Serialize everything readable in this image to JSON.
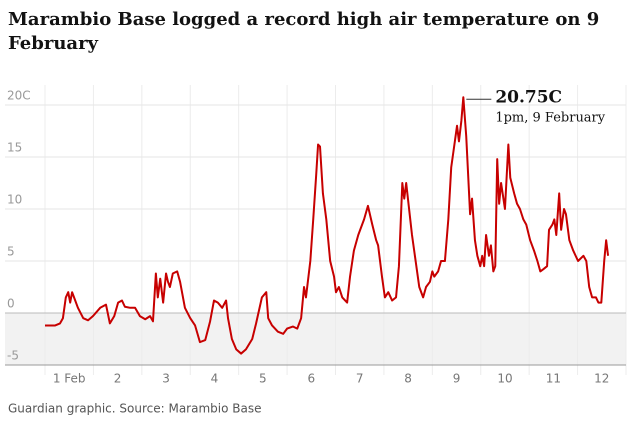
{
  "chart_data": {
    "type": "line",
    "title": "Marambio Base logged a record high air temperature on 9 February",
    "source": "Guardian graphic. Source: Marambio Base",
    "annotation": {
      "label": "20.75C",
      "sublabel": "1pm, 9 February"
    },
    "xlim": [
      1,
      13
    ],
    "xgrid": [
      1,
      2,
      3,
      4,
      5,
      6,
      7,
      8,
      9,
      10,
      11,
      12,
      13
    ],
    "xticks": [
      {
        "value": 1.5,
        "label": "1 Feb"
      },
      {
        "value": 2.5,
        "label": "2"
      },
      {
        "value": 3.5,
        "label": "3"
      },
      {
        "value": 4.5,
        "label": "4"
      },
      {
        "value": 5.5,
        "label": "5"
      },
      {
        "value": 6.5,
        "label": "6"
      },
      {
        "value": 7.5,
        "label": "7"
      },
      {
        "value": 8.5,
        "label": "8"
      },
      {
        "value": 9.5,
        "label": "9"
      },
      {
        "value": 10.5,
        "label": "10"
      },
      {
        "value": 11.5,
        "label": "11"
      },
      {
        "value": 12.5,
        "label": "12"
      }
    ],
    "ylim": [
      -5,
      20
    ],
    "yticks": [
      -5,
      0,
      5,
      10,
      15,
      {
        "value": 20,
        "label": "20C"
      }
    ],
    "grid": true,
    "below_zero_fill": "#f2f2f2",
    "color": "#c70000",
    "x": [
      1.0,
      1.21,
      1.31,
      1.37,
      1.43,
      1.48,
      1.52,
      1.56,
      1.6,
      1.68,
      1.79,
      1.89,
      1.99,
      2.14,
      2.26,
      2.34,
      2.43,
      2.51,
      2.59,
      2.65,
      2.76,
      2.86,
      2.96,
      3.07,
      3.17,
      3.23,
      3.29,
      3.33,
      3.38,
      3.44,
      3.5,
      3.54,
      3.58,
      3.64,
      3.73,
      3.79,
      3.89,
      4.0,
      4.1,
      4.2,
      4.31,
      4.41,
      4.49,
      4.57,
      4.66,
      4.74,
      4.78,
      4.86,
      4.95,
      5.05,
      5.15,
      5.28,
      5.36,
      5.48,
      5.57,
      5.61,
      5.69,
      5.81,
      5.92,
      6.0,
      6.12,
      6.21,
      6.29,
      6.35,
      6.39,
      6.48,
      6.54,
      6.6,
      6.64,
      6.68,
      6.74,
      6.81,
      6.89,
      6.97,
      7.01,
      7.07,
      7.14,
      7.24,
      7.3,
      7.38,
      7.47,
      7.59,
      7.67,
      7.76,
      7.84,
      7.88,
      7.96,
      8.02,
      8.09,
      8.17,
      8.25,
      8.31,
      8.38,
      8.42,
      8.46,
      8.52,
      8.58,
      8.64,
      8.73,
      8.81,
      8.87,
      8.95,
      9.0,
      9.04,
      9.12,
      9.18,
      9.26,
      9.33,
      9.39,
      9.45,
      9.51,
      9.55,
      9.6,
      9.64,
      9.7,
      9.78,
      9.82,
      9.88,
      9.93,
      9.99,
      10.03,
      10.07,
      10.11,
      10.17,
      10.21,
      10.26,
      10.3,
      10.34,
      10.38,
      10.42,
      10.5,
      10.57,
      10.61,
      10.69,
      10.75,
      10.81,
      10.88,
      10.94,
      11.02,
      11.1,
      11.17,
      11.23,
      11.29,
      11.37,
      11.41,
      11.48,
      11.52,
      11.56,
      11.62,
      11.66,
      11.72,
      11.76,
      11.83,
      11.91,
      12.01,
      12.12,
      12.18,
      12.24,
      12.3,
      12.38,
      12.43,
      12.49,
      12.55,
      12.59,
      12.63
    ],
    "values": [
      -1.2,
      -1.2,
      -1.0,
      -0.5,
      1.5,
      2.0,
      1.0,
      2.0,
      1.5,
      0.5,
      -0.5,
      -0.7,
      -0.3,
      0.5,
      0.8,
      -1.0,
      -0.3,
      1.0,
      1.2,
      0.6,
      0.5,
      0.5,
      -0.3,
      -0.6,
      -0.3,
      -0.8,
      3.8,
      1.5,
      3.3,
      1.0,
      3.8,
      3.0,
      2.5,
      3.8,
      4.0,
      3.0,
      0.5,
      -0.5,
      -1.2,
      -2.8,
      -2.6,
      -0.8,
      1.2,
      1.0,
      0.5,
      1.2,
      -0.5,
      -2.5,
      -3.5,
      -3.9,
      -3.5,
      -2.5,
      -1.0,
      1.5,
      2.0,
      -0.5,
      -1.2,
      -1.8,
      -2.0,
      -1.5,
      -1.3,
      -1.5,
      -0.5,
      2.5,
      1.5,
      5.0,
      9.0,
      13.2,
      16.2,
      16.0,
      11.5,
      9.0,
      5.0,
      3.5,
      2.0,
      2.5,
      1.5,
      1.0,
      3.5,
      6.0,
      7.5,
      9.0,
      10.3,
      8.5,
      7.0,
      6.5,
      3.5,
      1.5,
      2.0,
      1.2,
      1.5,
      4.5,
      12.5,
      11.0,
      12.5,
      10.0,
      7.5,
      5.5,
      2.5,
      1.5,
      2.5,
      3.0,
      4.0,
      3.5,
      4.0,
      5.0,
      5.0,
      9.0,
      14.0,
      16.0,
      18.0,
      16.5,
      18.5,
      20.75,
      17.0,
      9.5,
      11.0,
      7.0,
      5.5,
      4.5,
      5.5,
      4.5,
      7.5,
      5.5,
      6.5,
      4.0,
      4.5,
      14.8,
      10.5,
      12.5,
      10.0,
      16.2,
      13.0,
      11.5,
      10.5,
      10.0,
      9.0,
      8.5,
      7.0,
      6.0,
      5.0,
      4.0,
      4.2,
      4.5,
      8.0,
      8.5,
      9.0,
      7.5,
      11.5,
      8.0,
      10.0,
      9.5,
      7.0,
      6.0,
      5.0,
      5.5,
      5.0,
      2.5,
      1.5,
      1.5,
      1.0,
      1.0,
      5.0,
      7.0,
      5.5
    ]
  }
}
